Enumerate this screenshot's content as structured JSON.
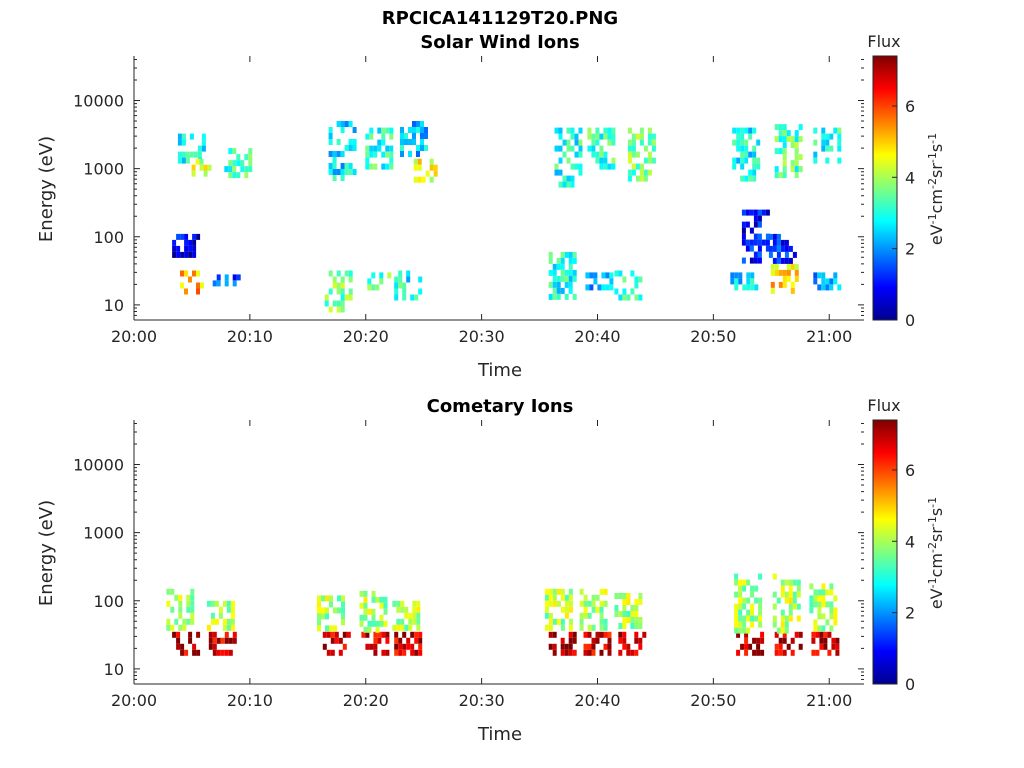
{
  "figure": {
    "title": "RPCICA141129T20.PNG"
  },
  "colorbar": {
    "label": "Flux",
    "unit_text": "eV-1cm-2sr-1s-1",
    "ticks": [
      0,
      2,
      4,
      6
    ],
    "range": [
      0,
      7.4
    ],
    "colormap": "jet",
    "colors": [
      "#00008f",
      "#0000ff",
      "#007fff",
      "#00ffff",
      "#7fff7f",
      "#ffff00",
      "#ff7f00",
      "#ff0000",
      "#7f0000"
    ]
  },
  "chart_data": [
    {
      "type": "heatmap",
      "title": "Solar Wind Ions",
      "xlabel": "Time",
      "ylabel": "Energy (eV)",
      "y_scale": "log",
      "ylim": [
        6,
        45000
      ],
      "xlim": [
        "20:00",
        "21:03"
      ],
      "x_ticks": [
        "20:00",
        "20:10",
        "20:20",
        "20:30",
        "20:40",
        "20:50",
        "21:00"
      ],
      "y_ticks": [
        10,
        100,
        1000,
        10000
      ],
      "clusters": [
        {
          "t": "20:04:50",
          "e_low": 15,
          "e_high": 32,
          "flux": 5.2
        },
        {
          "t": "20:04:30",
          "e_low": 50,
          "e_high": 110,
          "flux": 0.8
        },
        {
          "t": "20:05:00",
          "e_low": 1200,
          "e_high": 4000,
          "flux": 3.0
        },
        {
          "t": "20:05:50",
          "e_low": 700,
          "e_high": 1400,
          "flux": 4.4
        },
        {
          "t": "20:08:00",
          "e_low": 18,
          "e_high": 28,
          "flux": 1.5
        },
        {
          "t": "20:09:00",
          "e_low": 800,
          "e_high": 2000,
          "flux": 3.3
        },
        {
          "t": "20:17:40",
          "e_low": 8,
          "e_high": 32,
          "flux": 3.6
        },
        {
          "t": "20:18:00",
          "e_low": 600,
          "e_high": 5000,
          "flux": 2.6
        },
        {
          "t": "20:21:00",
          "e_low": 18,
          "e_high": 30,
          "flux": 3.4
        },
        {
          "t": "20:21:10",
          "e_low": 1000,
          "e_high": 4000,
          "flux": 3.1
        },
        {
          "t": "20:23:40",
          "e_low": 12,
          "e_high": 32,
          "flux": 2.9
        },
        {
          "t": "20:25:00",
          "e_low": 600,
          "e_high": 1400,
          "flux": 4.5
        },
        {
          "t": "20:24:10",
          "e_low": 1500,
          "e_high": 5000,
          "flux": 2.4
        },
        {
          "t": "20:37:00",
          "e_low": 12,
          "e_high": 60,
          "flux": 3.0
        },
        {
          "t": "20:37:30",
          "e_low": 500,
          "e_high": 4000,
          "flux": 3.0
        },
        {
          "t": "20:40:10",
          "e_low": 16,
          "e_high": 30,
          "flux": 2.2
        },
        {
          "t": "20:40:20",
          "e_low": 1000,
          "e_high": 4000,
          "flux": 3.2
        },
        {
          "t": "20:42:40",
          "e_low": 12,
          "e_high": 32,
          "flux": 3.3
        },
        {
          "t": "20:43:50",
          "e_low": 600,
          "e_high": 4000,
          "flux": 3.6
        },
        {
          "t": "20:52:40",
          "e_low": 15,
          "e_high": 30,
          "flux": 2.6
        },
        {
          "t": "20:52:50",
          "e_low": 600,
          "e_high": 4000,
          "flux": 2.8
        },
        {
          "t": "20:53:40",
          "e_low": 40,
          "e_high": 250,
          "flux": 1.0
        },
        {
          "t": "20:56:10",
          "e_low": 15,
          "e_high": 40,
          "flux": 4.9
        },
        {
          "t": "20:56:30",
          "e_low": 800,
          "e_high": 4500,
          "flux": 3.4
        },
        {
          "t": "20:56:00",
          "e_low": 40,
          "e_high": 110,
          "flux": 1.2
        },
        {
          "t": "20:59:50",
          "e_low": 16,
          "e_high": 30,
          "flux": 2.0
        },
        {
          "t": "20:59:50",
          "e_low": 1200,
          "e_high": 4000,
          "flux": 3.0
        }
      ]
    },
    {
      "type": "heatmap",
      "title": "Cometary Ions",
      "xlabel": "Time",
      "ylabel": "Energy (eV)",
      "y_scale": "log",
      "ylim": [
        6,
        45000
      ],
      "xlim": [
        "20:00",
        "21:03"
      ],
      "x_ticks": [
        "20:00",
        "20:10",
        "20:20",
        "20:30",
        "20:40",
        "20:50",
        "21:00"
      ],
      "y_ticks": [
        10,
        100,
        1000,
        10000
      ],
      "clusters": [
        {
          "t": "20:04:30",
          "e_low": 15,
          "e_high": 35,
          "flux": 7.0
        },
        {
          "t": "20:04:00",
          "e_low": 35,
          "e_high": 150,
          "flux": 4.0
        },
        {
          "t": "20:07:40",
          "e_low": 15,
          "e_high": 35,
          "flux": 6.8
        },
        {
          "t": "20:07:30",
          "e_low": 35,
          "e_high": 100,
          "flux": 4.0
        },
        {
          "t": "20:17:30",
          "e_low": 15,
          "e_high": 35,
          "flux": 6.9
        },
        {
          "t": "20:17:00",
          "e_low": 35,
          "e_high": 120,
          "flux": 4.0
        },
        {
          "t": "20:20:50",
          "e_low": 15,
          "e_high": 35,
          "flux": 6.9
        },
        {
          "t": "20:20:40",
          "e_low": 35,
          "e_high": 140,
          "flux": 4.0
        },
        {
          "t": "20:23:40",
          "e_low": 15,
          "e_high": 35,
          "flux": 6.8
        },
        {
          "t": "20:23:30",
          "e_low": 35,
          "e_high": 100,
          "flux": 4.0
        },
        {
          "t": "20:37:00",
          "e_low": 15,
          "e_high": 35,
          "flux": 7.0
        },
        {
          "t": "20:36:40",
          "e_low": 35,
          "e_high": 150,
          "flux": 4.0
        },
        {
          "t": "20:40:00",
          "e_low": 15,
          "e_high": 35,
          "flux": 6.8
        },
        {
          "t": "20:39:40",
          "e_low": 35,
          "e_high": 150,
          "flux": 4.0
        },
        {
          "t": "20:43:00",
          "e_low": 15,
          "e_high": 35,
          "flux": 6.8
        },
        {
          "t": "20:42:40",
          "e_low": 35,
          "e_high": 130,
          "flux": 4.0
        },
        {
          "t": "20:53:10",
          "e_low": 15,
          "e_high": 35,
          "flux": 7.0
        },
        {
          "t": "20:53:00",
          "e_low": 35,
          "e_high": 250,
          "flux": 4.0
        },
        {
          "t": "20:56:30",
          "e_low": 15,
          "e_high": 35,
          "flux": 6.9
        },
        {
          "t": "20:56:20",
          "e_low": 35,
          "e_high": 250,
          "flux": 4.1
        },
        {
          "t": "20:59:40",
          "e_low": 15,
          "e_high": 35,
          "flux": 6.9
        },
        {
          "t": "20:59:30",
          "e_low": 35,
          "e_high": 180,
          "flux": 4.0
        }
      ]
    }
  ]
}
